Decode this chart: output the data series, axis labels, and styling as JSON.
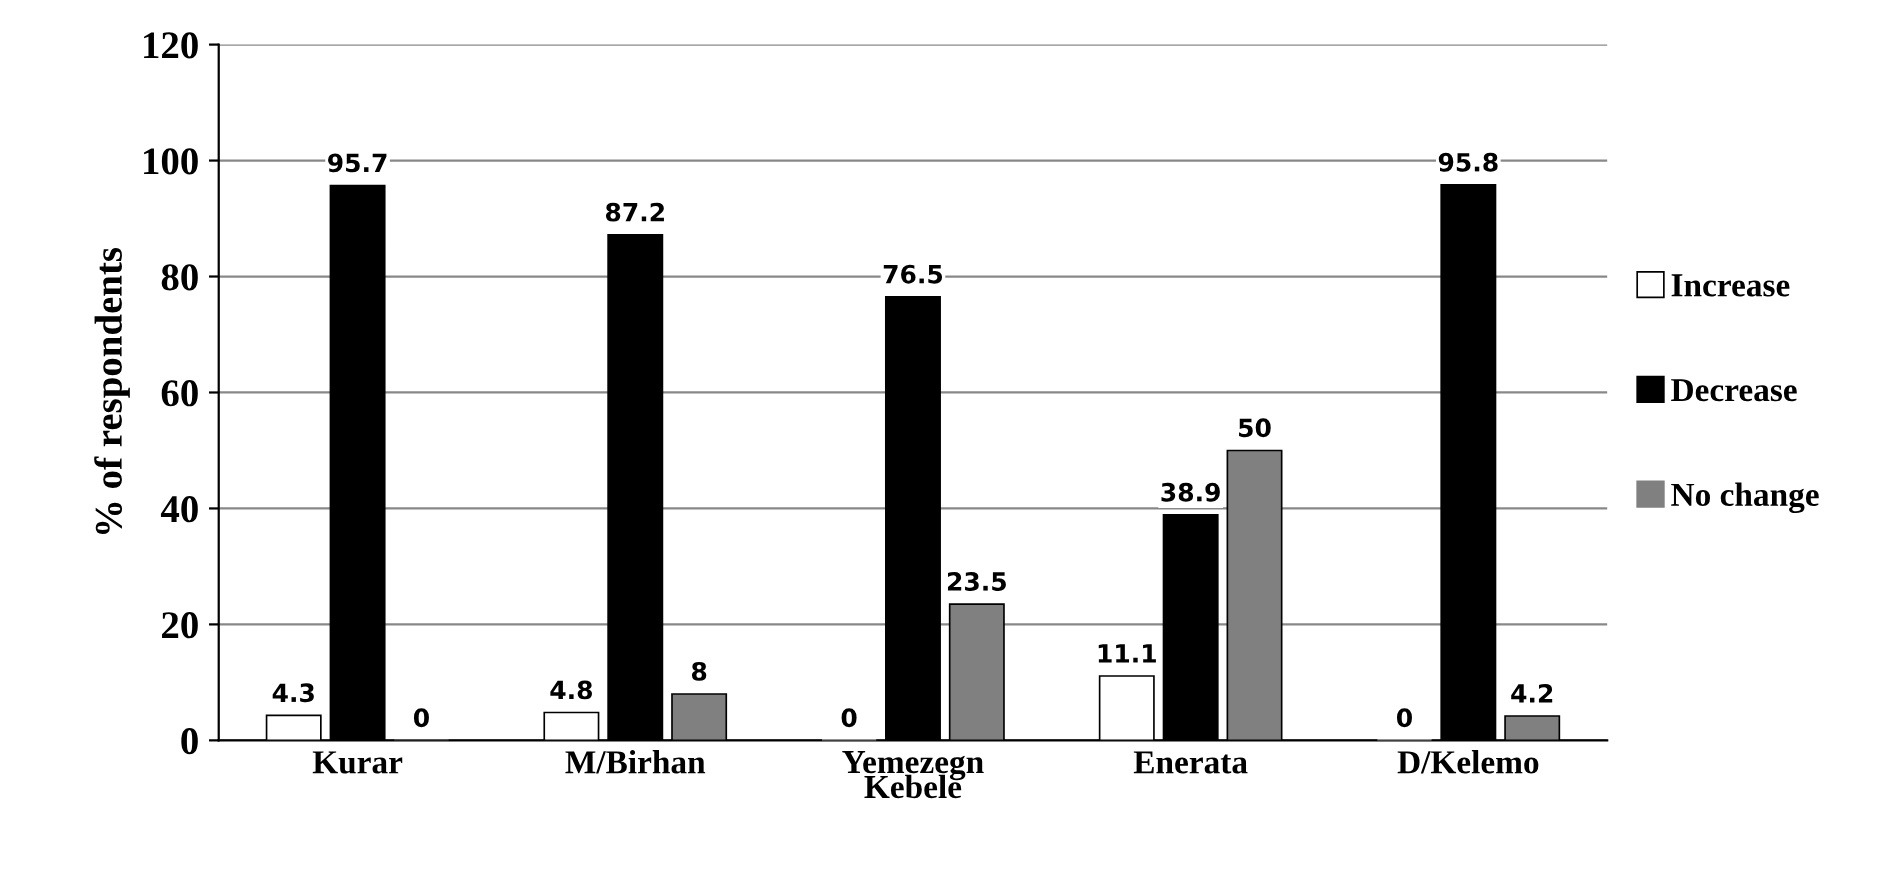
{
  "chart_data": {
    "type": "bar",
    "xlabel": "Kebele",
    "ylabel": "% of respondents",
    "categories": [
      "Kurar",
      "M/Birhan",
      "Yemezegn",
      "Enerata",
      "D/Kelemo"
    ],
    "series": [
      {
        "name": "Increase",
        "color": "#ffffff",
        "values": [
          4.3,
          4.8,
          0,
          11.1,
          0
        ]
      },
      {
        "name": "Decrease",
        "color": "#000000",
        "values": [
          95.7,
          87.2,
          76.5,
          38.9,
          95.8
        ]
      },
      {
        "name": "No change",
        "color": "#808080",
        "values": [
          0,
          8,
          23.5,
          50,
          4.2
        ]
      }
    ],
    "ylim": [
      0,
      120
    ],
    "yticks": [
      0,
      20,
      40,
      60,
      80,
      100,
      120
    ],
    "grid": "y",
    "legend": "right",
    "data_labels": true
  }
}
